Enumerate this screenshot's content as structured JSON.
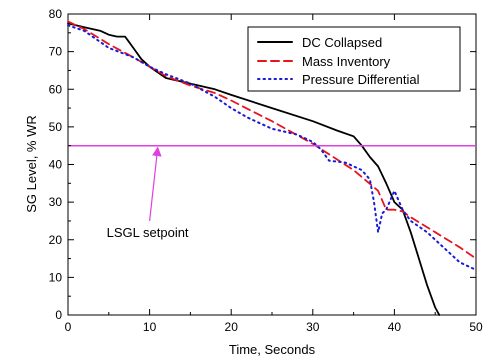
{
  "chart_data": {
    "type": "line",
    "title": "",
    "xlabel": "Time, Seconds",
    "ylabel": "SG Level, % WR",
    "xlim": [
      0,
      50
    ],
    "ylim": [
      0,
      80
    ],
    "xticks": [
      0,
      10,
      20,
      30,
      40,
      50
    ],
    "yticks": [
      0,
      10,
      20,
      30,
      40,
      50,
      60,
      70,
      80
    ],
    "grid": false,
    "legend_position": "top-right",
    "series": [
      {
        "name": "DC Collapsed",
        "color": "#000000",
        "style": "solid",
        "x": [
          0,
          2,
          4,
          5,
          6,
          7,
          8,
          9,
          10,
          12,
          15,
          18,
          20,
          25,
          30,
          33,
          35,
          36,
          37,
          38,
          39,
          40,
          41,
          42,
          43,
          44,
          45,
          45.5
        ],
        "y": [
          77.5,
          76.5,
          75.5,
          74.5,
          74,
          74,
          71,
          68,
          66,
          63,
          61.5,
          60,
          58.5,
          55,
          51.5,
          49,
          47.5,
          45,
          42,
          39.5,
          35,
          30,
          28,
          22,
          15,
          8,
          2,
          0
        ]
      },
      {
        "name": "Mass Inventory",
        "color": "#e8141c",
        "style": "dashed",
        "x": [
          0,
          2,
          5,
          8,
          10,
          12,
          15,
          18,
          20,
          25,
          30,
          35,
          38,
          39,
          40,
          41,
          42,
          45,
          48,
          50
        ],
        "y": [
          78,
          76,
          72,
          68.5,
          66,
          63.5,
          61,
          59,
          57,
          51.5,
          45.5,
          38.5,
          33,
          28,
          28,
          27.5,
          26,
          22,
          18,
          15
        ]
      },
      {
        "name": "Pressure Differential",
        "color": "#1a1ad6",
        "style": "dotted",
        "x": [
          0,
          2,
          5,
          8,
          10,
          12,
          15,
          18,
          20,
          22,
          25,
          28,
          30,
          31,
          32,
          34,
          36,
          37,
          37.5,
          38,
          38.5,
          39,
          40,
          41,
          42,
          44,
          46,
          48,
          50
        ],
        "y": [
          77,
          75.5,
          71,
          68.5,
          66,
          64,
          61.5,
          58,
          55,
          52.5,
          49.5,
          48,
          46,
          44,
          41,
          40.5,
          38.5,
          36,
          30,
          22,
          27,
          28,
          33,
          28,
          25,
          22,
          18,
          14,
          12
        ]
      }
    ],
    "reference_lines": [
      {
        "axis": "y",
        "value": 45,
        "color": "#e040e0"
      }
    ],
    "annotations": [
      {
        "text": "LSGL setpoint",
        "arrow_to": {
          "x": 11,
          "y": 45
        },
        "arrow_from": {
          "x": 10,
          "y": 25
        },
        "color": "#e040e0"
      }
    ]
  }
}
